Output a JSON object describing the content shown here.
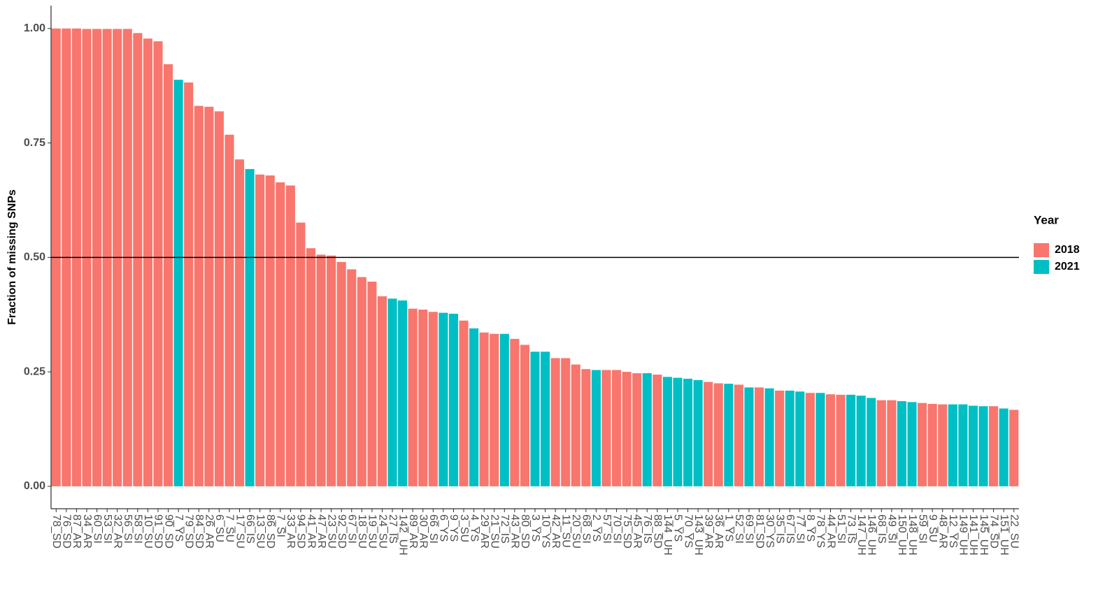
{
  "chart_data": {
    "type": "bar",
    "y_label": "Fraction of missing SNPs",
    "legend_title": "Year",
    "legend": "right",
    "hline": 0.5,
    "ylim": [
      -0.049,
      1.05
    ],
    "yticks": [
      {
        "value": 0,
        "label": "0.00"
      },
      {
        "value": 0.25,
        "label": "0.25"
      },
      {
        "value": 0.5,
        "label": "0.50"
      },
      {
        "value": 0.75,
        "label": "0.75"
      },
      {
        "value": 1,
        "label": "1.00"
      }
    ],
    "categories": [
      "78_SD",
      "76_SD",
      "87_AR",
      "34_AR",
      "60_SI",
      "53_SI",
      "32_AR",
      "56_SI",
      "58_SI",
      "10_SU",
      "91_SD",
      "90_SD",
      "7_YS",
      "79_SD",
      "84_SD",
      "26_AR",
      "6_SU",
      "7_SU",
      "17_SU",
      "66_IS",
      "13_SU",
      "86_SD",
      "7_SI",
      "33_AR",
      "94_SD",
      "41_AR",
      "47_AR",
      "23_SU",
      "92_SD",
      "67_SI",
      "18_SU",
      "19_SU",
      "24_SU",
      "27_IS",
      "142_UH",
      "89_AR",
      "30_AR",
      "66_SI",
      "6_YS",
      "9_YS",
      "3_SU",
      "4_YS",
      "29_AR",
      "21_SU",
      "72_IS",
      "43_AR",
      "80_SD",
      "3_YS",
      "10_YS",
      "42_AR",
      "11_SU",
      "20_SU",
      "68_SI",
      "2_YS",
      "57_SI",
      "70_SI",
      "75_SD",
      "45_AR",
      "76_IS",
      "88_SD",
      "144_UH",
      "5_YS",
      "70_YS",
      "143_UH",
      "39_AR",
      "36_AR",
      "1_YS",
      "52_SI",
      "69_SI",
      "81_SD",
      "30_YS",
      "35_IS",
      "67_IS",
      "77_SI",
      "8_YS",
      "78_YS",
      "44_AR",
      "51_SI",
      "73_IS",
      "147_UH",
      "146_UH",
      "68_IS",
      "49_SI",
      "150_UH",
      "148_UH",
      "59_SI",
      "9_SU",
      "48_AR",
      "12_YS",
      "149_UH",
      "141_UH",
      "145_UH",
      "74_SD",
      "151_UH",
      "22_SU"
    ],
    "series": [
      {
        "name": "2018",
        "color": "#F8766D",
        "values": [
          1.0,
          1.0,
          1.0,
          0.999,
          0.999,
          0.999,
          0.999,
          0.999,
          0.99,
          0.978,
          0.972,
          0.922,
          null,
          0.882,
          0.831,
          0.829,
          0.819,
          0.768,
          0.714,
          null,
          0.681,
          0.679,
          0.664,
          0.657,
          0.576,
          0.52,
          0.506,
          0.504,
          0.49,
          0.474,
          0.457,
          0.447,
          0.415,
          null,
          null,
          0.388,
          0.386,
          0.381,
          null,
          null,
          0.362,
          null,
          0.336,
          0.333,
          null,
          0.322,
          0.309,
          null,
          null,
          0.28,
          0.28,
          0.266,
          0.256,
          null,
          0.254,
          0.254,
          0.25,
          0.247,
          null,
          0.244,
          null,
          null,
          null,
          null,
          0.228,
          0.225,
          null,
          0.222,
          null,
          0.216,
          null,
          0.209,
          null,
          null,
          0.204,
          null,
          0.201,
          0.2,
          null,
          null,
          null,
          0.188,
          0.188,
          null,
          null,
          0.182,
          0.18,
          0.179,
          null,
          null,
          null,
          null,
          0.175,
          null,
          0.167
        ]
      },
      {
        "name": "2021",
        "color": "#00BFC4",
        "values": [
          null,
          null,
          null,
          null,
          null,
          null,
          null,
          null,
          null,
          null,
          null,
          null,
          0.888,
          null,
          null,
          null,
          null,
          null,
          null,
          0.693,
          null,
          null,
          null,
          null,
          null,
          null,
          null,
          null,
          null,
          null,
          null,
          null,
          null,
          0.41,
          0.406,
          null,
          null,
          null,
          0.379,
          0.377,
          null,
          0.345,
          null,
          null,
          0.333,
          null,
          null,
          0.294,
          0.294,
          null,
          null,
          null,
          null,
          0.254,
          null,
          null,
          null,
          null,
          0.247,
          null,
          0.239,
          0.237,
          0.235,
          0.232,
          null,
          null,
          0.224,
          null,
          0.216,
          null,
          0.214,
          null,
          0.209,
          0.207,
          null,
          0.204,
          null,
          null,
          0.2,
          0.198,
          0.193,
          null,
          null,
          0.186,
          0.184,
          null,
          null,
          null,
          0.179,
          0.179,
          0.176,
          0.175,
          null,
          0.17,
          null
        ]
      }
    ]
  }
}
